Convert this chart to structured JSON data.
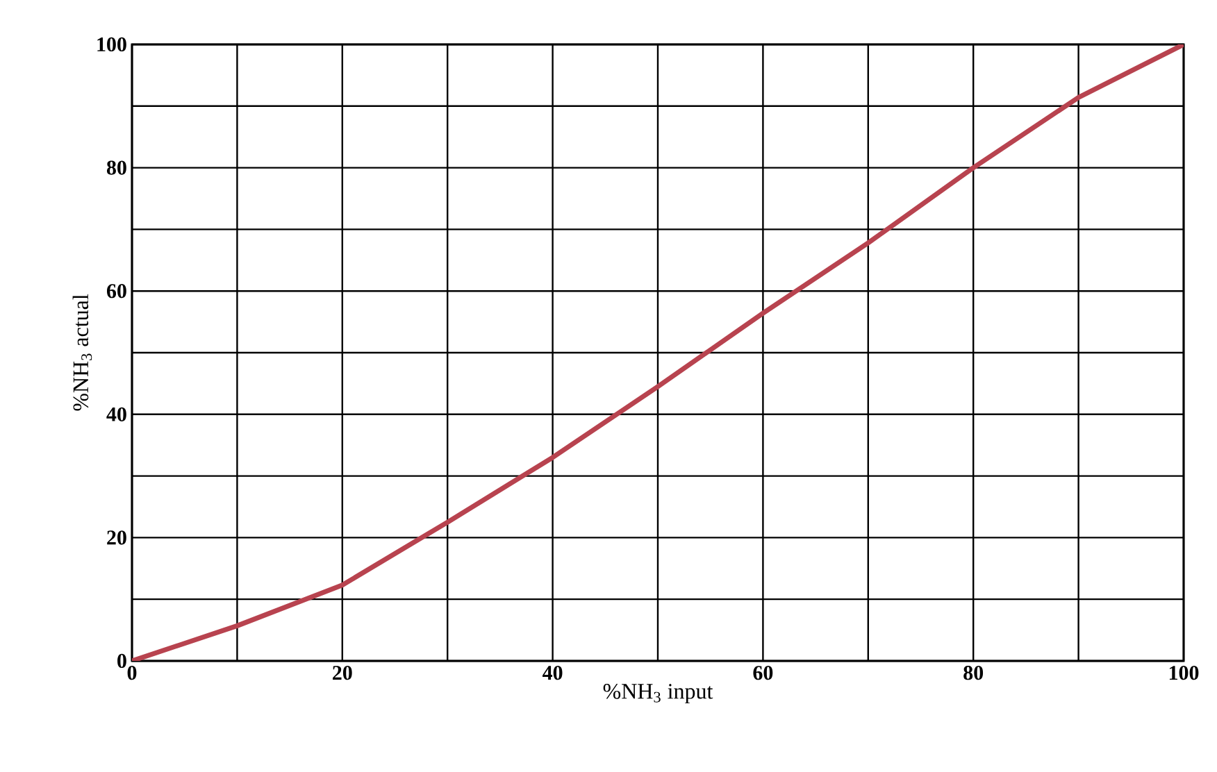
{
  "chart_data": {
    "type": "line",
    "xlabel": "%NH$_{3}$ input",
    "ylabel": "%NH$_{3}$ actual",
    "x": [
      0,
      10,
      20,
      30,
      40,
      50,
      60,
      70,
      80,
      90,
      100
    ],
    "series": [
      {
        "color": "#b8434f",
        "values": [
          0,
          5.7,
          12.3,
          22.5,
          33,
          44.5,
          56.4,
          67.8,
          80,
          91.4,
          100
        ]
      }
    ],
    "xlim": [
      0,
      100
    ],
    "ylim": [
      0,
      100
    ],
    "xticks": [
      0,
      {
        "value": 10,
        "label": null
      },
      20,
      {
        "value": 30,
        "label": null
      },
      40,
      {
        "value": 50,
        "label": null
      },
      60,
      {
        "value": 70,
        "label": null
      },
      80,
      {
        "value": 90,
        "label": null
      },
      100
    ],
    "yticks": [
      0,
      {
        "value": 10,
        "label": null
      },
      20,
      {
        "value": 30,
        "label": null
      },
      40,
      {
        "value": 50,
        "label": null
      },
      60,
      {
        "value": 70,
        "label": null
      },
      80,
      {
        "value": 90,
        "label": null
      },
      100
    ],
    "grid": true,
    "marker": "none",
    "line_style": "solid"
  }
}
